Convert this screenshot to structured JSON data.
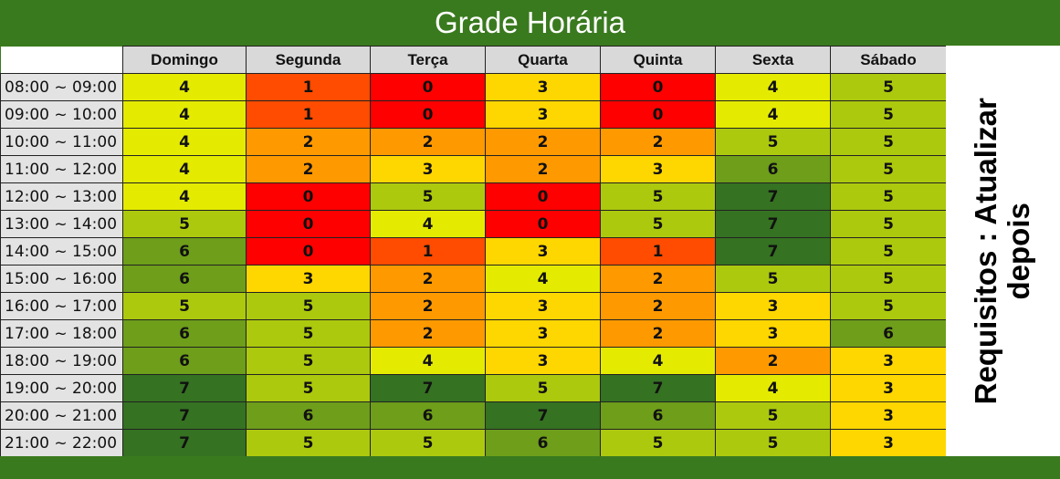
{
  "title": "Grade Horária",
  "side_note_line1": "Requisitos : Atualizar",
  "side_note_line2": "depois",
  "days": [
    "Domingo",
    "Segunda",
    "Terça",
    "Quarta",
    "Quinta",
    "Sexta",
    "Sábado"
  ],
  "colors": {
    "0": "#ff0000",
    "1": "#ff4c00",
    "2": "#ff9900",
    "3": "#ffd700",
    "4": "#e4eb00",
    "5": "#adc90e",
    "6": "#6e9e1a",
    "7": "#357222",
    "header": "#3a7a1f",
    "time_cell": "#e3e3e3",
    "day_header": "#d9d9d9"
  },
  "rows": [
    {
      "time": "08:00 ~ 09:00",
      "values": [
        "4",
        "1",
        "0",
        "3",
        "0",
        "4",
        "5"
      ]
    },
    {
      "time": "09:00 ~ 10:00",
      "values": [
        "4",
        "1",
        "0",
        "3",
        "0",
        "4",
        "5"
      ]
    },
    {
      "time": "10:00 ~ 11:00",
      "values": [
        "4",
        "2",
        "2",
        "2",
        "2",
        "5",
        "5"
      ]
    },
    {
      "time": "11:00 ~ 12:00",
      "values": [
        "4",
        "2",
        "3",
        "2",
        "3",
        "6",
        "5"
      ]
    },
    {
      "time": "12:00 ~ 13:00",
      "values": [
        "4",
        "0",
        "5",
        "0",
        "5",
        "7",
        "5"
      ]
    },
    {
      "time": "13:00 ~ 14:00",
      "values": [
        "5",
        "0",
        "4",
        "0",
        "5",
        "7",
        "5"
      ]
    },
    {
      "time": "14:00 ~ 15:00",
      "values": [
        "6",
        "0",
        "1",
        "3",
        "1",
        "7",
        "5"
      ]
    },
    {
      "time": "15:00 ~ 16:00",
      "values": [
        "6",
        "3",
        "2",
        "4",
        "2",
        "5",
        "5"
      ]
    },
    {
      "time": "16:00 ~ 17:00",
      "values": [
        "5",
        "5",
        "2",
        "3",
        "2",
        "3",
        "5"
      ]
    },
    {
      "time": "17:00 ~ 18:00",
      "values": [
        "6",
        "5",
        "2",
        "3",
        "2",
        "3",
        "6"
      ]
    },
    {
      "time": "18:00 ~ 19:00",
      "values": [
        "6",
        "5",
        "4",
        "3",
        "4",
        "2",
        "3"
      ]
    },
    {
      "time": "19:00 ~ 20:00",
      "values": [
        "7",
        "5",
        "7",
        "5",
        "7",
        "4",
        "3"
      ]
    },
    {
      "time": "20:00 ~ 21:00",
      "values": [
        "7",
        "6",
        "6",
        "7",
        "6",
        "5",
        "3"
      ]
    },
    {
      "time": "21:00 ~ 22:00",
      "values": [
        "7",
        "5",
        "5",
        "6",
        "5",
        "5",
        "3"
      ]
    }
  ]
}
